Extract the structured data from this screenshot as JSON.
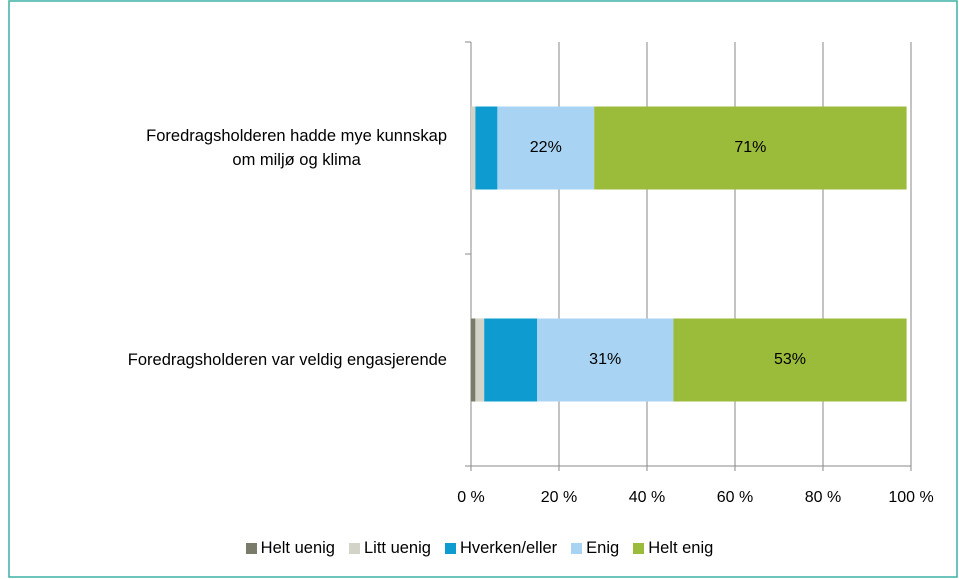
{
  "chart_data": {
    "type": "stacked_barh",
    "categories": [
      "Foredragsholderen hadde mye kunnskap\nom miljø og klima",
      "Foredragsholderen var veldig engasjerende"
    ],
    "series": [
      {
        "name": "Helt uenig",
        "color": "#7b7b6a",
        "values": [
          0,
          1
        ]
      },
      {
        "name": "Litt uenig",
        "color": "#d3d3c7",
        "values": [
          1,
          2
        ]
      },
      {
        "name": "Hverken/eller",
        "color": "#0e9bd0",
        "values": [
          5,
          12
        ]
      },
      {
        "name": "Enig",
        "color": "#a9d3f3",
        "values": [
          22,
          31
        ],
        "value_labels": [
          "22%",
          "31%"
        ]
      },
      {
        "name": "Helt enig",
        "color": "#9bbb3b",
        "values": [
          71,
          53
        ],
        "value_labels": [
          "71%",
          "53%"
        ]
      }
    ],
    "xlim": [
      0,
      100
    ],
    "xticks": [
      {
        "value": 0,
        "label": "0 %"
      },
      {
        "value": 20,
        "label": "20 %"
      },
      {
        "value": 40,
        "label": "40 %"
      },
      {
        "value": 60,
        "label": "60 %"
      },
      {
        "value": 80,
        "label": "80 %"
      },
      {
        "value": 100,
        "label": "100 %"
      }
    ],
    "grid": true,
    "legend": "bottom"
  }
}
